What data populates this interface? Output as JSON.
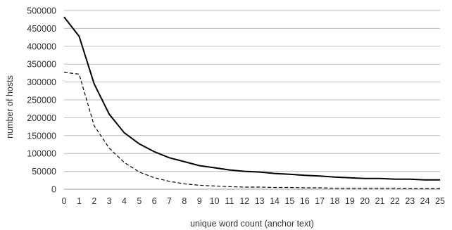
{
  "chart_data": {
    "type": "line",
    "title": "",
    "xlabel": "unique word count (anchor text)",
    "ylabel": "number of hosts",
    "xlim": [
      0,
      25
    ],
    "ylim": [
      0,
      500000
    ],
    "grid": true,
    "x": [
      0,
      1,
      2,
      3,
      4,
      5,
      6,
      7,
      8,
      9,
      10,
      11,
      12,
      13,
      14,
      15,
      16,
      17,
      18,
      19,
      20,
      21,
      22,
      23,
      24,
      25
    ],
    "x_ticks": [
      "0",
      "1",
      "2",
      "3",
      "4",
      "5",
      "6",
      "7",
      "8",
      "9",
      "10",
      "11",
      "12",
      "13",
      "14",
      "15",
      "16",
      "17",
      "18",
      "19",
      "20",
      "21",
      "22",
      "23",
      "24",
      "25"
    ],
    "y_ticks": [
      "0",
      "50000",
      "100000",
      "150000",
      "200000",
      "250000",
      "300000",
      "350000",
      "400000",
      "450000",
      "500000"
    ],
    "y_tick_values": [
      0,
      50000,
      100000,
      150000,
      200000,
      250000,
      300000,
      350000,
      400000,
      450000,
      500000
    ],
    "series": [
      {
        "style": "solid",
        "color": "#000000",
        "values": [
          482000,
          428000,
          295000,
          210000,
          158000,
          127000,
          105000,
          88000,
          77000,
          66000,
          60000,
          54000,
          50000,
          48000,
          44000,
          42000,
          39000,
          37000,
          34000,
          32000,
          30000,
          30000,
          28000,
          28000,
          26000,
          26000
        ]
      },
      {
        "style": "dashed",
        "color": "#000000",
        "values": [
          327000,
          322000,
          178000,
          115000,
          75000,
          48000,
          32000,
          22000,
          15000,
          11000,
          9000,
          7000,
          6000,
          6000,
          5000,
          5000,
          4000,
          4000,
          3000,
          3000,
          3000,
          3000,
          3000,
          2000,
          2000,
          2000
        ]
      }
    ]
  }
}
